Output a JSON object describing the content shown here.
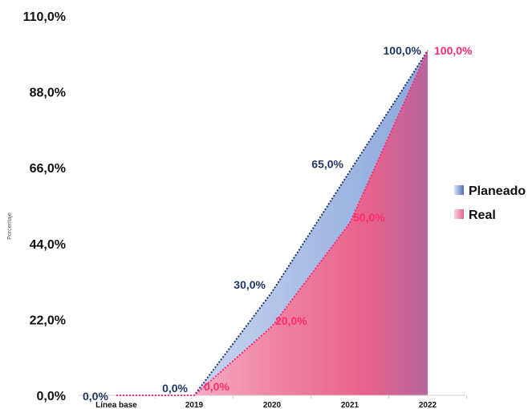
{
  "chart_data": {
    "type": "area",
    "title": "",
    "xlabel": "",
    "ylabel": "Porcentaje",
    "categories": [
      "Línea base",
      "2019",
      "2020",
      "2021",
      "2022"
    ],
    "ylim": [
      0,
      110
    ],
    "yticks": [
      "0,0%",
      "22,0%",
      "44,0%",
      "66,0%",
      "88,0%",
      "110,0%"
    ],
    "legend_position": "right",
    "grid": false,
    "series": [
      {
        "name": "Planeado",
        "color": "#1F3864",
        "values": [
          0,
          0,
          30,
          65,
          100
        ],
        "labels": [
          "0,0%",
          "0,0%",
          "30,0%",
          "65,0%",
          "100,0%"
        ]
      },
      {
        "name": "Real",
        "color": "#FF2D6F",
        "values": [
          0,
          0,
          20,
          50,
          100
        ],
        "labels": [
          "",
          "0,0%",
          "20,0%",
          "50,0%",
          "100,0%"
        ]
      }
    ]
  }
}
